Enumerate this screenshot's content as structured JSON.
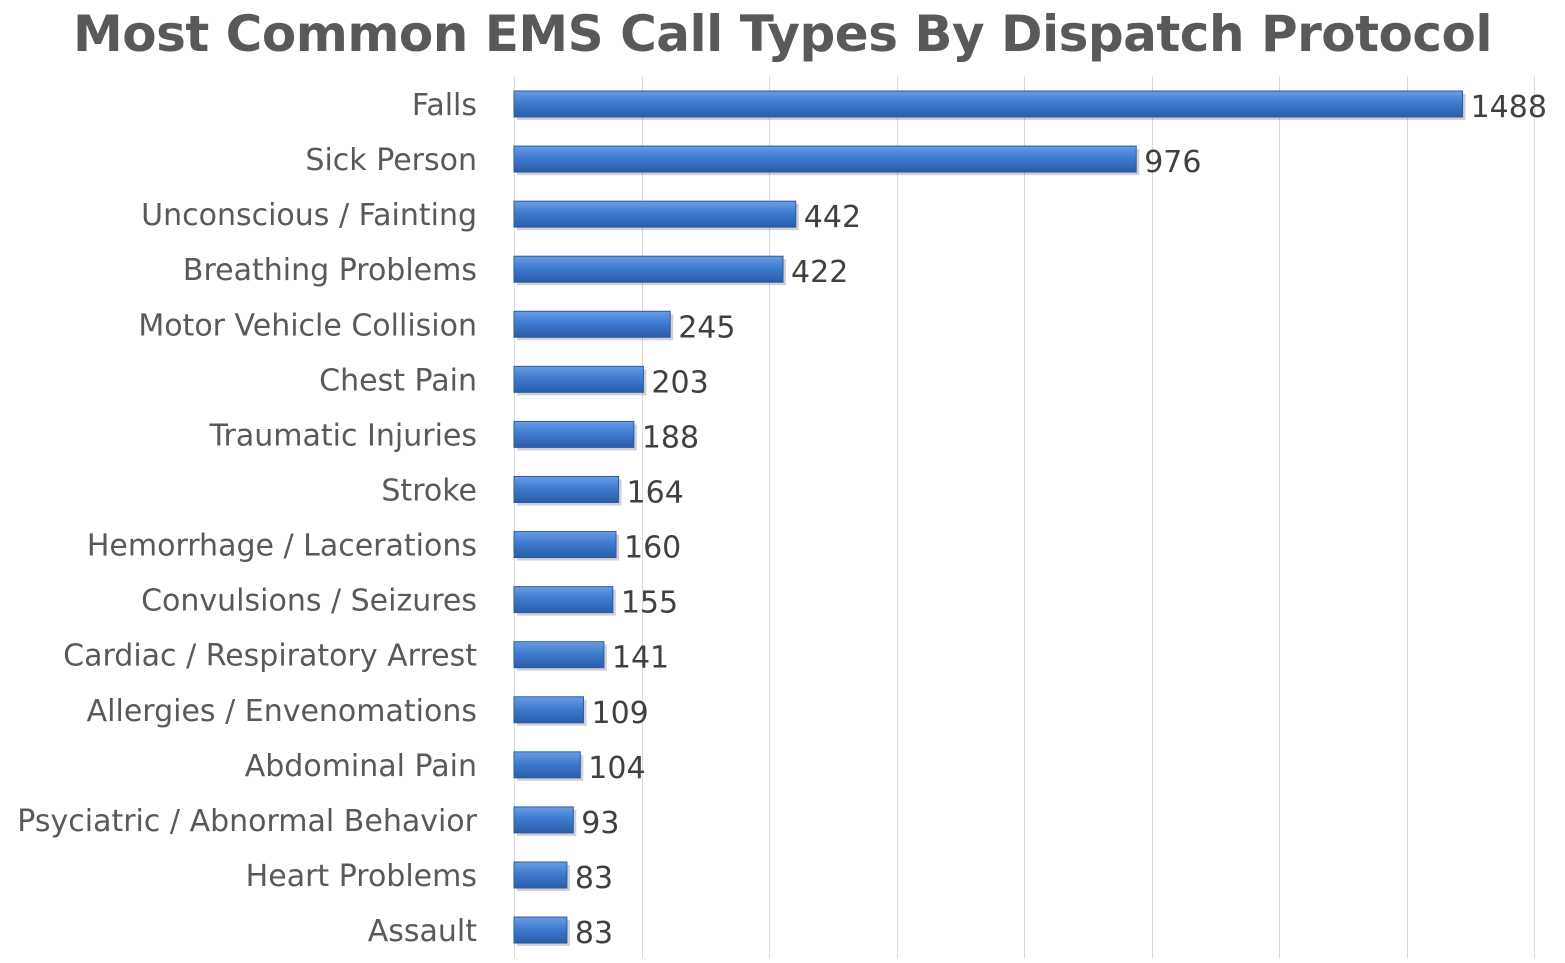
{
  "chart_data": {
    "type": "bar",
    "orientation": "horizontal",
    "title": "Most Common EMS Call Types By Dispatch Protocol",
    "categories": [
      "Falls",
      "Sick Person",
      "Unconscious / Fainting",
      "Breathing Problems",
      "Motor Vehicle Collision",
      "Chest Pain",
      "Traumatic Injuries",
      "Stroke",
      "Hemorrhage / Lacerations",
      "Convulsions / Seizures",
      "Cardiac / Respiratory Arrest",
      "Allergies / Envenomations",
      "Abdominal Pain",
      "Psyciatric / Abnormal Behavior",
      "Heart Problems",
      "Assault"
    ],
    "values": [
      1488,
      976,
      442,
      422,
      245,
      203,
      188,
      164,
      160,
      155,
      141,
      109,
      104,
      93,
      83,
      83
    ],
    "data_labels": [
      "1488",
      "976",
      "442",
      "422",
      "245",
      "203",
      "188",
      "164",
      "160",
      "155",
      "141",
      "109",
      "104",
      "93",
      "83",
      "83"
    ],
    "xlim": [
      0,
      1600
    ],
    "x_gridline_step": 200,
    "grid": true,
    "legend": "none",
    "bar_color": "#3F7BD0",
    "bar_edge_color": "#2A5CA8"
  }
}
